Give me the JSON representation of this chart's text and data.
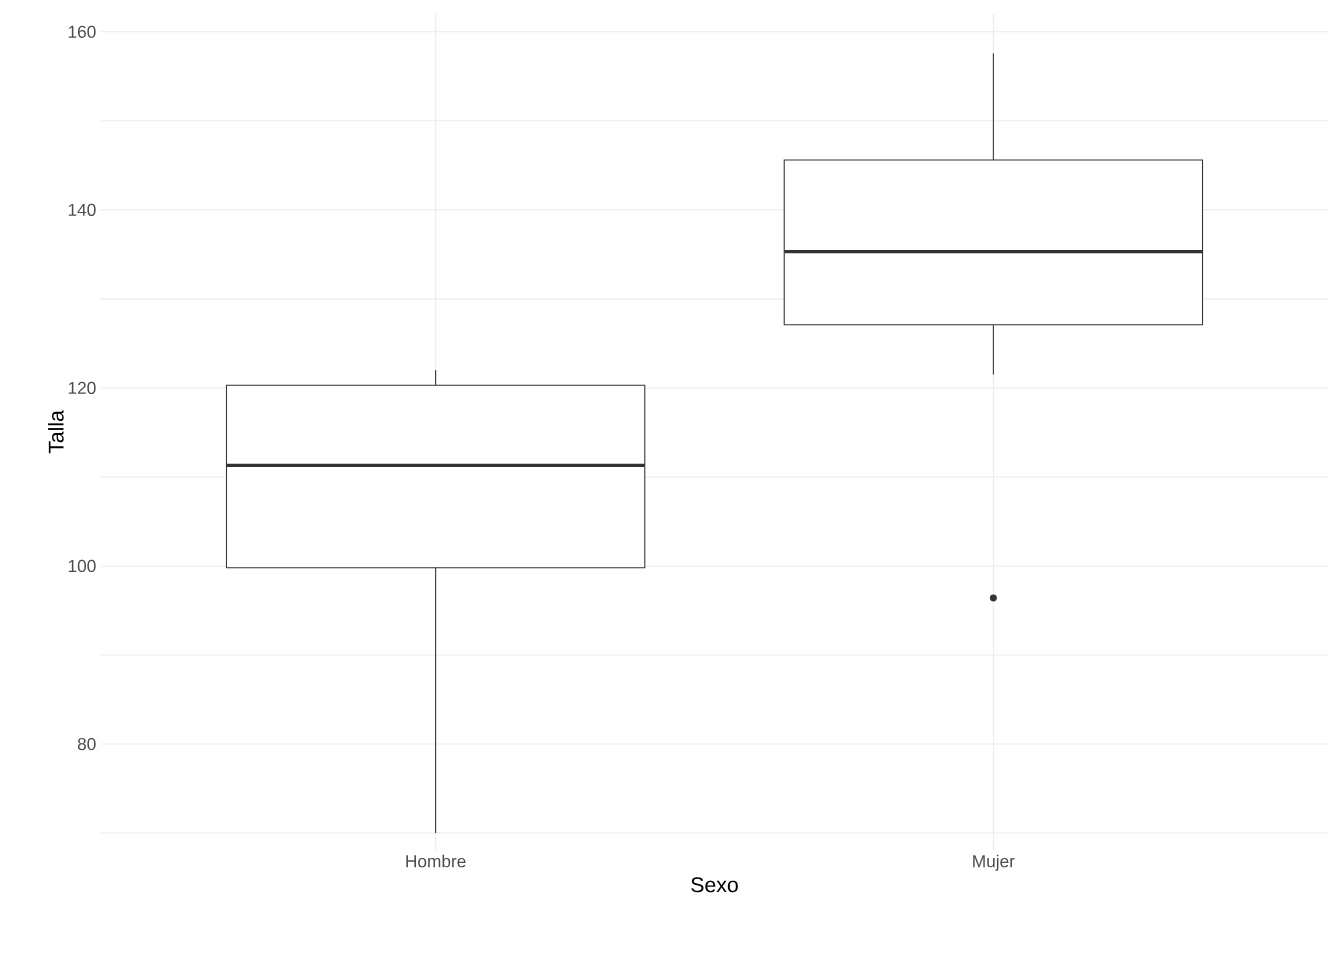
{
  "chart_data": {
    "type": "box",
    "xlabel": "Sexo",
    "ylabel": "Talla",
    "categories": [
      "Hombre",
      "Mujer"
    ],
    "boxes": [
      {
        "low": 70.0,
        "q1": 99.8,
        "median": 111.3,
        "q3": 120.3,
        "high": 122.0
      },
      {
        "low": 121.5,
        "q1": 127.1,
        "median": 135.3,
        "q3": 145.6,
        "high": 157.6,
        "outliers": [
          96.4
        ]
      }
    ],
    "color": "#333333",
    "ylim": [
      68.1,
      162.0
    ],
    "yticks": [
      {
        "value": 70,
        "label": null
      },
      80,
      {
        "value": 90,
        "label": null
      },
      100,
      {
        "value": 110,
        "label": null
      },
      120,
      {
        "value": 130,
        "label": null
      },
      140,
      {
        "value": 150,
        "label": null
      },
      160
    ],
    "grid": true
  }
}
